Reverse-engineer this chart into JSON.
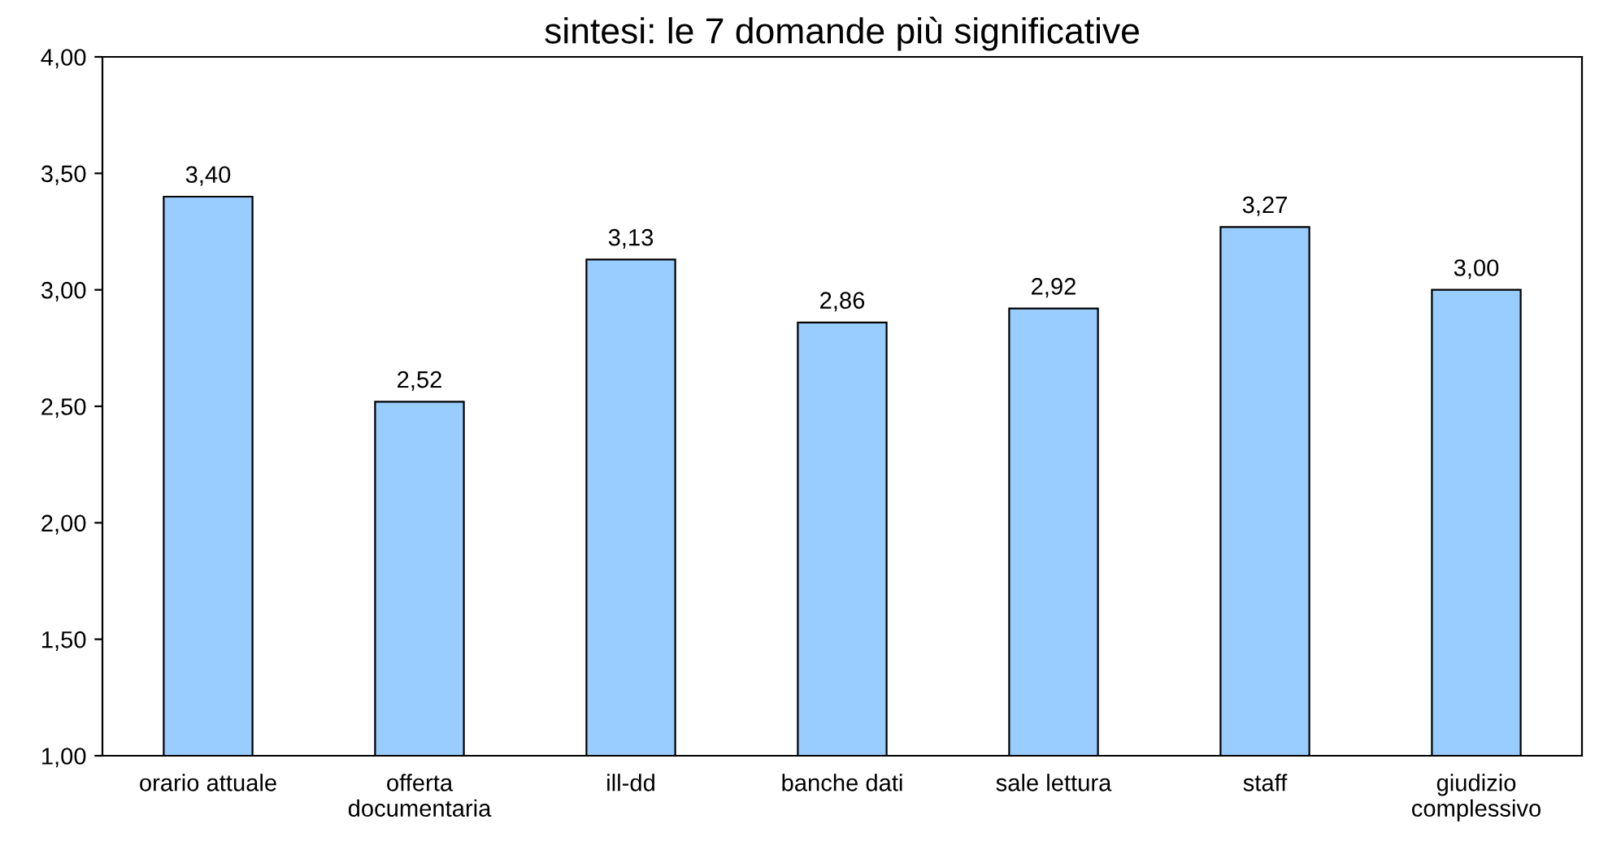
{
  "chart_data": {
    "type": "bar",
    "title": "sintesi: le 7 domande più significative",
    "categories": [
      "orario attuale",
      "offerta\ndocumentaria",
      "ill-dd",
      "banche dati",
      "sale lettura",
      "staff",
      "giudizio\ncomplessivo"
    ],
    "values": [
      3.4,
      2.52,
      3.13,
      2.86,
      2.92,
      3.27,
      3.0
    ],
    "value_labels": [
      "3,40",
      "2,52",
      "3,13",
      "2,86",
      "2,92",
      "3,27",
      "3,00"
    ],
    "color": "#99ccff",
    "ylim": [
      1.0,
      4.0
    ],
    "yticks": [
      {
        "value": 1.0,
        "label": "1,00"
      },
      {
        "value": 1.5,
        "label": "1,50"
      },
      {
        "value": 2.0,
        "label": "2,00"
      },
      {
        "value": 2.5,
        "label": "2,50"
      },
      {
        "value": 3.0,
        "label": "3,00"
      },
      {
        "value": 3.5,
        "label": "3,50"
      },
      {
        "value": 4.0,
        "label": "4,00"
      }
    ],
    "grid": false,
    "legend": false
  }
}
